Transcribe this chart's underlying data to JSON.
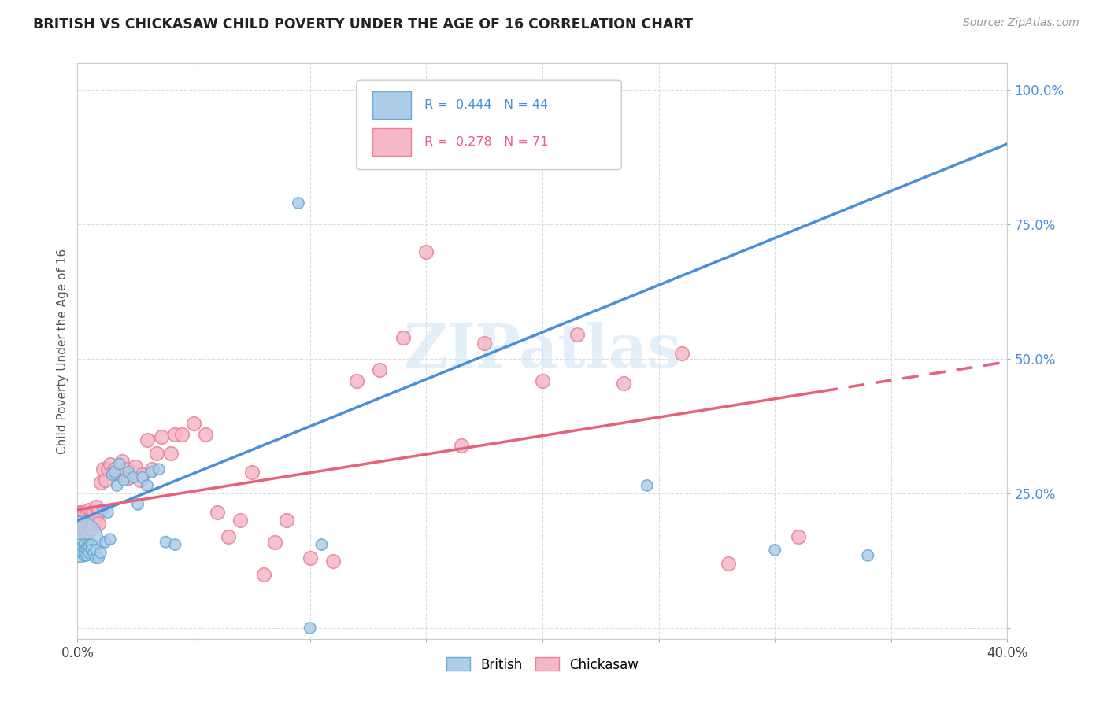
{
  "title": "BRITISH VS CHICKASAW CHILD POVERTY UNDER THE AGE OF 16 CORRELATION CHART",
  "source": "Source: ZipAtlas.com",
  "ylabel": "Child Poverty Under the Age of 16",
  "xlim": [
    0.0,
    0.4
  ],
  "ylim": [
    -0.02,
    1.05
  ],
  "xticks": [
    0.0,
    0.05,
    0.1,
    0.15,
    0.2,
    0.25,
    0.3,
    0.35,
    0.4
  ],
  "xticklabels": [
    "0.0%",
    "",
    "",
    "",
    "",
    "",
    "",
    "",
    "40.0%"
  ],
  "yticks": [
    0.0,
    0.25,
    0.5,
    0.75,
    1.0
  ],
  "yticklabels": [
    "",
    "25.0%",
    "50.0%",
    "75.0%",
    "100.0%"
  ],
  "british_R": 0.444,
  "british_N": 44,
  "chickasaw_R": 0.278,
  "chickasaw_N": 71,
  "british_color": "#aecde8",
  "chickasaw_color": "#f5b8c8",
  "british_edge_color": "#6aaad4",
  "chickasaw_edge_color": "#e8819a",
  "british_line_color": "#4a90d9",
  "chickasaw_line_color": "#e8607a",
  "watermark": "ZIPatlas",
  "british_x": [
    0.001,
    0.001,
    0.002,
    0.002,
    0.003,
    0.003,
    0.003,
    0.004,
    0.004,
    0.004,
    0.005,
    0.005,
    0.005,
    0.006,
    0.006,
    0.007,
    0.008,
    0.008,
    0.009,
    0.01,
    0.011,
    0.012,
    0.013,
    0.014,
    0.015,
    0.016,
    0.017,
    0.018,
    0.02,
    0.022,
    0.024,
    0.026,
    0.028,
    0.03,
    0.032,
    0.035,
    0.038,
    0.042,
    0.095,
    0.1,
    0.105,
    0.245,
    0.3,
    0.34
  ],
  "british_y": [
    0.165,
    0.155,
    0.15,
    0.14,
    0.155,
    0.145,
    0.135,
    0.15,
    0.145,
    0.135,
    0.155,
    0.15,
    0.14,
    0.155,
    0.145,
    0.14,
    0.13,
    0.145,
    0.13,
    0.14,
    0.22,
    0.16,
    0.215,
    0.165,
    0.285,
    0.29,
    0.265,
    0.305,
    0.275,
    0.29,
    0.28,
    0.23,
    0.28,
    0.265,
    0.29,
    0.295,
    0.16,
    0.155,
    0.79,
    0.0,
    0.155,
    0.265,
    0.145,
    0.135
  ],
  "british_sizes": [
    500,
    30,
    30,
    30,
    30,
    30,
    30,
    30,
    30,
    30,
    30,
    30,
    30,
    30,
    30,
    30,
    30,
    30,
    30,
    30,
    30,
    30,
    30,
    30,
    30,
    30,
    30,
    30,
    30,
    30,
    30,
    30,
    30,
    30,
    30,
    30,
    30,
    30,
    30,
    30,
    30,
    30,
    30,
    30
  ],
  "chickasaw_x": [
    0.001,
    0.001,
    0.001,
    0.002,
    0.002,
    0.002,
    0.003,
    0.003,
    0.003,
    0.004,
    0.004,
    0.004,
    0.005,
    0.005,
    0.005,
    0.006,
    0.006,
    0.006,
    0.007,
    0.007,
    0.008,
    0.008,
    0.009,
    0.009,
    0.01,
    0.011,
    0.012,
    0.013,
    0.014,
    0.015,
    0.016,
    0.017,
    0.018,
    0.019,
    0.02,
    0.021,
    0.022,
    0.024,
    0.025,
    0.027,
    0.028,
    0.03,
    0.032,
    0.034,
    0.036,
    0.04,
    0.042,
    0.045,
    0.05,
    0.055,
    0.06,
    0.065,
    0.07,
    0.075,
    0.08,
    0.085,
    0.09,
    0.1,
    0.11,
    0.12,
    0.13,
    0.14,
    0.15,
    0.165,
    0.175,
    0.2,
    0.215,
    0.235,
    0.26,
    0.28,
    0.31
  ],
  "chickasaw_y": [
    0.195,
    0.215,
    0.2,
    0.215,
    0.205,
    0.185,
    0.215,
    0.2,
    0.18,
    0.21,
    0.195,
    0.175,
    0.22,
    0.205,
    0.195,
    0.215,
    0.205,
    0.185,
    0.215,
    0.195,
    0.225,
    0.205,
    0.215,
    0.195,
    0.27,
    0.295,
    0.275,
    0.295,
    0.305,
    0.29,
    0.295,
    0.285,
    0.285,
    0.31,
    0.285,
    0.295,
    0.28,
    0.29,
    0.3,
    0.275,
    0.285,
    0.35,
    0.295,
    0.325,
    0.355,
    0.325,
    0.36,
    0.36,
    0.38,
    0.36,
    0.215,
    0.17,
    0.2,
    0.29,
    0.1,
    0.16,
    0.2,
    0.13,
    0.125,
    0.46,
    0.48,
    0.54,
    0.7,
    0.34,
    0.53,
    0.46,
    0.545,
    0.455,
    0.51,
    0.12,
    0.17
  ],
  "grid_color": "#dddddd",
  "grid_style": "--",
  "legend_box_color": "#cccccc",
  "bottom_legend_labels": [
    "British",
    "Chickasaw"
  ]
}
